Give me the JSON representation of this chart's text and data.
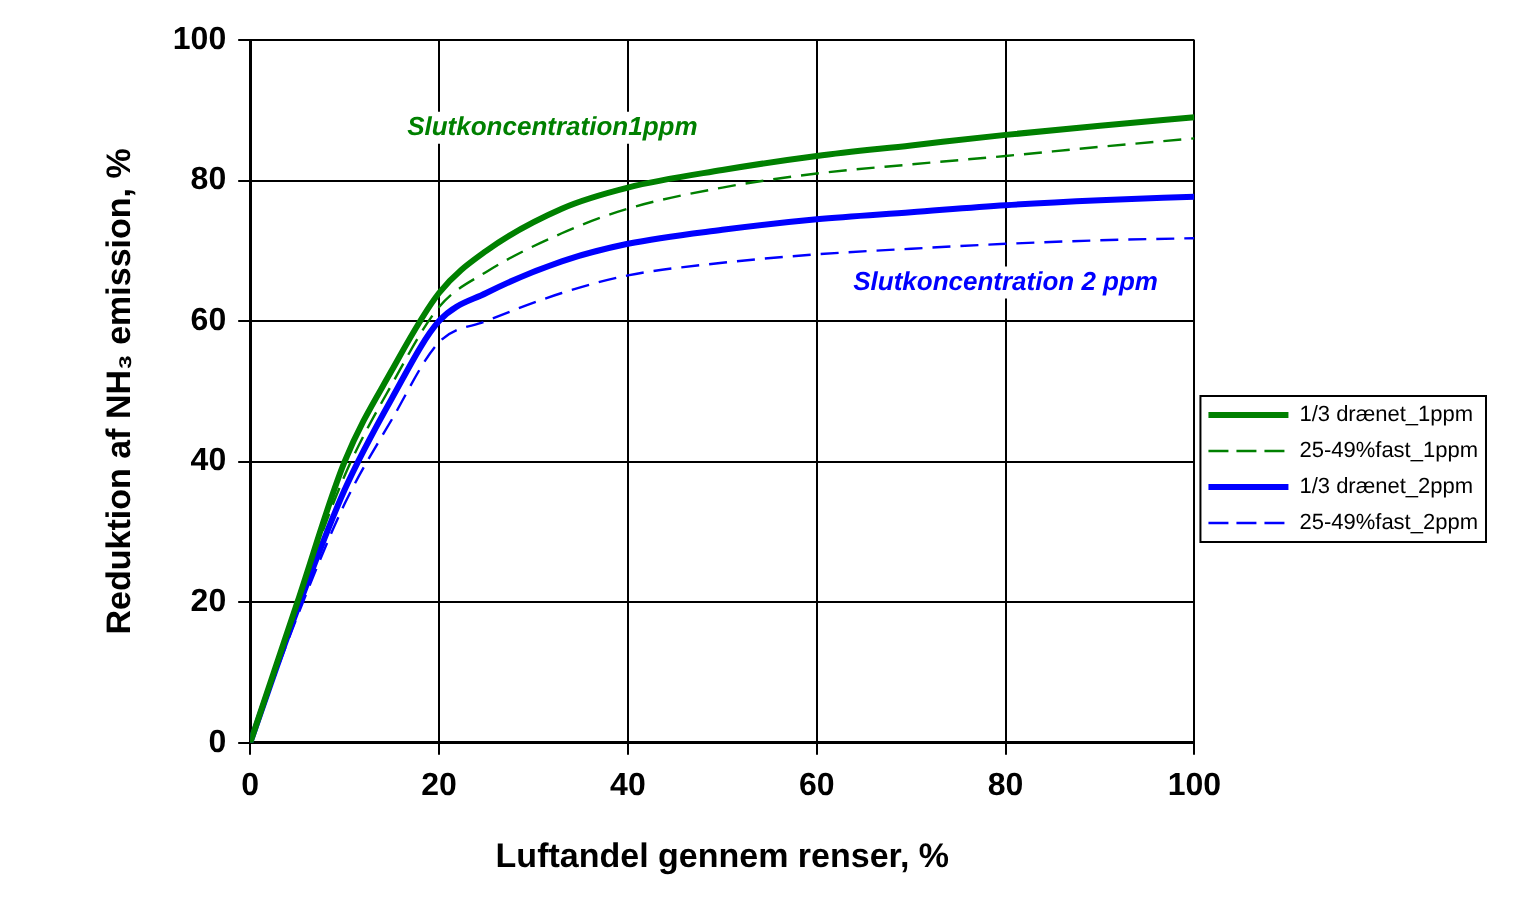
{
  "chart_data": {
    "type": "line",
    "xlabel": "Luftandel gennem renser, %",
    "ylabel": "Reduktion af NH₃ emission, %",
    "xlim": [
      0,
      100
    ],
    "xticks": [
      0,
      20,
      40,
      60,
      80,
      100
    ],
    "ylim": [
      0,
      100
    ],
    "yticks": [
      0,
      20,
      40,
      60,
      80,
      100
    ],
    "grid": true,
    "legend": "right",
    "marker": "none",
    "x": [
      0,
      5,
      10,
      15,
      20,
      25,
      33,
      40,
      50,
      60,
      70,
      80,
      90,
      100
    ],
    "series": [
      {
        "name": "1/3 drænet_1ppm",
        "color": "#008000",
        "line_style": "solid",
        "values": [
          0,
          20,
          40,
          53,
          64,
          70,
          76,
          79,
          81.5,
          83.5,
          85,
          86.5,
          87.8,
          89
        ]
      },
      {
        "name": "25-49%fast_1ppm",
        "color": "#008000",
        "line_style": "dashed",
        "values": [
          0,
          20,
          38,
          51,
          62,
          67,
          72.5,
          76,
          79,
          81,
          82.3,
          83.5,
          84.8,
          86
        ]
      },
      {
        "name": "1/3 drænet_2ppm",
        "color": "#0000ff",
        "line_style": "solid",
        "values": [
          0,
          19,
          36,
          49,
          60,
          64,
          68.5,
          71,
          73,
          74.5,
          75.5,
          76.5,
          77.2,
          77.7
        ]
      },
      {
        "name": "25-49%fast_2ppm",
        "color": "#0000ff",
        "line_style": "dashed",
        "values": [
          0,
          18,
          34,
          46,
          57,
          60,
          64,
          66.5,
          68.3,
          69.5,
          70.3,
          71,
          71.5,
          71.8
        ]
      }
    ],
    "annotations": [
      "Slutkoncentration1ppm",
      "Slutkoncentration 2 ppm"
    ]
  }
}
